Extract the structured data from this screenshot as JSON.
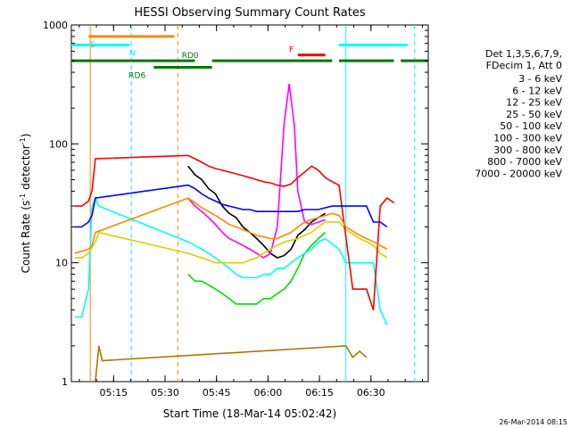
{
  "chart_data": {
    "type": "line",
    "title": "HESSI Observing Summary Count Rates",
    "xlabel": "Start Time (18-Mar-14 05:02:42)",
    "ylabel_main": "Count Rate (s",
    "ylabel_sup1": "-1",
    "ylabel_mid": " detector",
    "ylabel_sup2": "-1",
    "ylabel_end": ")",
    "yscale": "log",
    "ylim": [
      1,
      1000
    ],
    "xlim_minutes": [
      0,
      104
    ],
    "xticks": [
      {
        "m": 12.3,
        "label": "05:15"
      },
      {
        "m": 27.3,
        "label": "05:30"
      },
      {
        "m": 42.3,
        "label": "05:45"
      },
      {
        "m": 57.3,
        "label": "06:00"
      },
      {
        "m": 72.3,
        "label": "06:15"
      },
      {
        "m": 87.3,
        "label": "06:30"
      }
    ],
    "yticks": [
      {
        "v": 1,
        "label": "1"
      },
      {
        "v": 10,
        "label": "10"
      },
      {
        "v": 100,
        "label": "100"
      },
      {
        "v": 1000,
        "label": "1000"
      }
    ],
    "legend_header": [
      "Det 1,3,5,6,7,9,",
      "FDecim 1, Att 0"
    ],
    "legend_placement": "right",
    "series": [
      {
        "name": "3 - 6 keV",
        "color": "#000000",
        "points": [
          [
            34,
            65
          ],
          [
            36,
            55
          ],
          [
            38,
            50
          ],
          [
            40,
            42
          ],
          [
            42,
            38
          ],
          [
            44,
            30
          ],
          [
            46,
            26
          ],
          [
            48,
            24
          ],
          [
            50,
            20
          ],
          [
            52,
            18
          ],
          [
            54,
            16
          ],
          [
            56,
            14
          ],
          [
            58,
            12
          ],
          [
            60,
            11
          ],
          [
            62,
            11.5
          ],
          [
            64,
            13
          ],
          [
            66,
            17
          ],
          [
            68,
            19
          ],
          [
            70,
            22
          ],
          [
            72,
            24
          ],
          [
            74,
            26
          ]
        ]
      },
      {
        "name": "6 - 12 keV",
        "color": "#ff00ff",
        "points": [
          [
            34,
            35
          ],
          [
            36,
            30
          ],
          [
            38,
            27
          ],
          [
            40,
            24
          ],
          [
            42,
            21
          ],
          [
            44,
            18
          ],
          [
            46,
            16
          ],
          [
            48,
            15
          ],
          [
            50,
            14
          ],
          [
            52,
            13
          ],
          [
            54,
            12
          ],
          [
            56,
            11
          ],
          [
            58,
            12
          ],
          [
            60,
            20
          ],
          [
            62,
            150
          ],
          [
            63.5,
            320
          ],
          [
            65,
            140
          ],
          [
            66,
            40
          ],
          [
            68,
            22
          ],
          [
            70,
            21
          ],
          [
            72,
            22
          ],
          [
            74,
            23
          ]
        ]
      },
      {
        "name": "12 - 25 keV",
        "color": "#00e000",
        "points": [
          [
            34,
            8
          ],
          [
            36,
            7
          ],
          [
            38,
            7
          ],
          [
            40,
            6.5
          ],
          [
            42,
            6
          ],
          [
            44,
            5.5
          ],
          [
            46,
            5
          ],
          [
            48,
            4.5
          ],
          [
            50,
            4.5
          ],
          [
            52,
            4.5
          ],
          [
            54,
            4.5
          ],
          [
            56,
            5
          ],
          [
            58,
            5
          ],
          [
            60,
            5.5
          ],
          [
            62,
            6
          ],
          [
            64,
            7
          ],
          [
            66,
            9
          ],
          [
            68,
            12
          ],
          [
            70,
            14
          ],
          [
            72,
            16
          ],
          [
            74,
            18
          ]
        ]
      },
      {
        "name": "25 - 50 keV",
        "color": "#00ffff",
        "points": [
          [
            1,
            3.5
          ],
          [
            3,
            3.5
          ],
          [
            5,
            6
          ],
          [
            6,
            30
          ],
          [
            7,
            35
          ],
          [
            8,
            30
          ],
          [
            34,
            15
          ],
          [
            36,
            14
          ],
          [
            38,
            13
          ],
          [
            40,
            12
          ],
          [
            42,
            11
          ],
          [
            44,
            10
          ],
          [
            46,
            9
          ],
          [
            48,
            8
          ],
          [
            50,
            7.5
          ],
          [
            52,
            7.5
          ],
          [
            54,
            7.5
          ],
          [
            56,
            8
          ],
          [
            58,
            8
          ],
          [
            60,
            9
          ],
          [
            62,
            9
          ],
          [
            64,
            10
          ],
          [
            66,
            11
          ],
          [
            68,
            12
          ],
          [
            70,
            13
          ],
          [
            72,
            15
          ],
          [
            74,
            16
          ],
          [
            78,
            13
          ],
          [
            80,
            10
          ],
          [
            84,
            10
          ],
          [
            88,
            10
          ],
          [
            90,
            4
          ],
          [
            92,
            3
          ]
        ]
      },
      {
        "name": "50 - 100 keV",
        "color": "#ddcc00",
        "points": [
          [
            1,
            11
          ],
          [
            3,
            11
          ],
          [
            5,
            12
          ],
          [
            7,
            15
          ],
          [
            8,
            18
          ],
          [
            34,
            12
          ],
          [
            36,
            11.5
          ],
          [
            38,
            11
          ],
          [
            40,
            10.5
          ],
          [
            42,
            10
          ],
          [
            44,
            10
          ],
          [
            46,
            10
          ],
          [
            48,
            10
          ],
          [
            50,
            10
          ],
          [
            52,
            10.5
          ],
          [
            54,
            11
          ],
          [
            56,
            12
          ],
          [
            58,
            13
          ],
          [
            60,
            14
          ],
          [
            62,
            15
          ],
          [
            64,
            15.5
          ],
          [
            66,
            16
          ],
          [
            68,
            17
          ],
          [
            70,
            18
          ],
          [
            72,
            20
          ],
          [
            74,
            22
          ],
          [
            78,
            22
          ],
          [
            80,
            19
          ],
          [
            84,
            16
          ],
          [
            86,
            15
          ],
          [
            88,
            14
          ],
          [
            89,
            13
          ],
          [
            90,
            12
          ],
          [
            92,
            11
          ]
        ]
      },
      {
        "name": "100 - 300 keV",
        "color": "#ff0000",
        "points": [
          [
            1,
            30
          ],
          [
            3,
            30
          ],
          [
            5,
            33
          ],
          [
            6,
            40
          ],
          [
            7,
            75
          ],
          [
            34,
            80
          ],
          [
            36,
            75
          ],
          [
            38,
            70
          ],
          [
            40,
            65
          ],
          [
            42,
            62
          ],
          [
            44,
            60
          ],
          [
            46,
            58
          ],
          [
            48,
            56
          ],
          [
            50,
            54
          ],
          [
            52,
            52
          ],
          [
            54,
            50
          ],
          [
            56,
            48
          ],
          [
            58,
            47
          ],
          [
            60,
            45
          ],
          [
            62,
            44
          ],
          [
            64,
            46
          ],
          [
            66,
            52
          ],
          [
            68,
            58
          ],
          [
            70,
            65
          ],
          [
            72,
            60
          ],
          [
            74,
            52
          ],
          [
            76,
            48
          ],
          [
            78,
            45
          ],
          [
            82,
            6
          ],
          [
            86,
            6
          ],
          [
            88,
            4
          ],
          [
            90,
            30
          ],
          [
            92,
            35
          ],
          [
            94,
            32
          ]
        ]
      },
      {
        "name": "300 - 800 keV",
        "color": "#0000ff",
        "points": [
          [
            1,
            20
          ],
          [
            3,
            20
          ],
          [
            5,
            22
          ],
          [
            6,
            25
          ],
          [
            7,
            35
          ],
          [
            34,
            45
          ],
          [
            36,
            42
          ],
          [
            38,
            38
          ],
          [
            40,
            35
          ],
          [
            42,
            33
          ],
          [
            44,
            31
          ],
          [
            46,
            30
          ],
          [
            48,
            29
          ],
          [
            50,
            28
          ],
          [
            52,
            28
          ],
          [
            54,
            27
          ],
          [
            56,
            27
          ],
          [
            58,
            27
          ],
          [
            60,
            27
          ],
          [
            62,
            27
          ],
          [
            64,
            27
          ],
          [
            66,
            27
          ],
          [
            68,
            28
          ],
          [
            70,
            28
          ],
          [
            72,
            28
          ],
          [
            74,
            29
          ],
          [
            76,
            30
          ],
          [
            78,
            30
          ],
          [
            80,
            30
          ],
          [
            82,
            30
          ],
          [
            84,
            30
          ],
          [
            86,
            30
          ],
          [
            88,
            22
          ],
          [
            90,
            22
          ],
          [
            92,
            20
          ]
        ]
      },
      {
        "name": "800 - 7000 keV",
        "color": "#ff8800",
        "points": [
          [
            1,
            12
          ],
          [
            3,
            12.5
          ],
          [
            5,
            13
          ],
          [
            6,
            14
          ],
          [
            7,
            18
          ],
          [
            34,
            35
          ],
          [
            36,
            32
          ],
          [
            38,
            29
          ],
          [
            40,
            27
          ],
          [
            42,
            25
          ],
          [
            44,
            23
          ],
          [
            46,
            21
          ],
          [
            48,
            20
          ],
          [
            50,
            19
          ],
          [
            52,
            18
          ],
          [
            54,
            17
          ],
          [
            56,
            16.5
          ],
          [
            58,
            16
          ],
          [
            60,
            16
          ],
          [
            62,
            17
          ],
          [
            64,
            18
          ],
          [
            66,
            20
          ],
          [
            68,
            22
          ],
          [
            70,
            23
          ],
          [
            72,
            24
          ],
          [
            74,
            25
          ],
          [
            76,
            26
          ],
          [
            78,
            25
          ],
          [
            80,
            20
          ],
          [
            84,
            17
          ],
          [
            86,
            16
          ],
          [
            88,
            15
          ],
          [
            90,
            14
          ],
          [
            92,
            13
          ]
        ]
      },
      {
        "name": "7000 - 20000 keV",
        "color": "#aa7700",
        "points": [
          [
            7,
            1
          ],
          [
            8,
            2
          ],
          [
            9,
            1.5
          ],
          [
            80,
            2
          ],
          [
            82,
            1.6
          ],
          [
            84,
            1.8
          ],
          [
            86,
            1.6
          ]
        ]
      }
    ],
    "bars": [
      {
        "label": "S",
        "label_color": "#ff8800",
        "color": "#ff8800",
        "segments": [
          [
            5,
            30
          ]
        ],
        "value": 800
      },
      {
        "label": "N",
        "label_color": "#00ffff",
        "color": "#00ffff",
        "segments": [
          [
            0,
            17
          ],
          [
            78,
            98
          ]
        ],
        "value": 680
      },
      {
        "label": "F",
        "label_color": "#ff0000",
        "color": "#ff0000",
        "segments": [
          [
            66,
            74
          ]
        ],
        "value": 560
      },
      {
        "label": "RD0",
        "label_color": "#007700",
        "color": "#007700",
        "segments": [
          [
            0,
            36
          ],
          [
            41,
            76
          ],
          [
            78,
            94
          ],
          [
            96,
            104
          ]
        ],
        "value": 500
      },
      {
        "label": "RD6",
        "label_color": "#007700",
        "color": "#007700",
        "segments": [
          [
            24,
            41
          ]
        ],
        "value": 440
      }
    ],
    "vlines": [
      {
        "m": 5.5,
        "color": "#ff8800",
        "style": "solid"
      },
      {
        "m": 17.5,
        "color": "#00ffff",
        "style": "dashed"
      },
      {
        "m": 31.0,
        "color": "#ff8800",
        "style": "dashed"
      },
      {
        "m": 80.0,
        "color": "#00ffff",
        "style": "solid"
      },
      {
        "m": 100.0,
        "color": "#00ffff",
        "style": "dashed"
      }
    ]
  },
  "footer": {
    "timestamp": "26-Mar-2014 08:15"
  }
}
